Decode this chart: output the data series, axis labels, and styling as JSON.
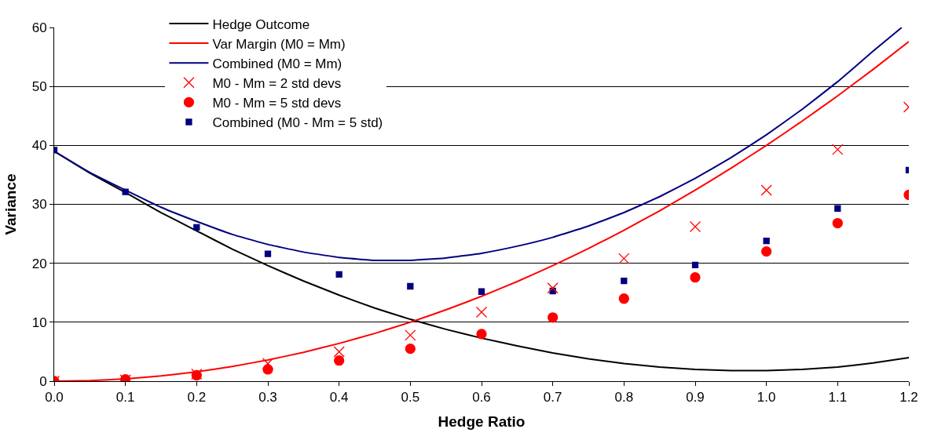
{
  "chart_data": {
    "type": "line",
    "xlabel": "Hedge Ratio",
    "ylabel": "Variance",
    "xlim": [
      0,
      1.2
    ],
    "ylim": [
      0,
      60
    ],
    "xticks": [
      {
        "value": 0,
        "label": "0.0"
      },
      {
        "value": 0.1,
        "label": "0.1"
      },
      {
        "value": 0.2,
        "label": "0.2"
      },
      {
        "value": 0.3,
        "label": "0.3"
      },
      {
        "value": 0.4,
        "label": "0.4"
      },
      {
        "value": 0.5,
        "label": "0.5"
      },
      {
        "value": 0.6,
        "label": "0.6"
      },
      {
        "value": 0.7,
        "label": "0.7"
      },
      {
        "value": 0.8,
        "label": "0.8"
      },
      {
        "value": 0.9,
        "label": "0.9"
      },
      {
        "value": 1.0,
        "label": "1.0"
      },
      {
        "value": 1.1,
        "label": "1.1"
      },
      {
        "value": 1.2,
        "label": "1.2"
      }
    ],
    "yticks": [
      0,
      10,
      20,
      30,
      40,
      50,
      60
    ],
    "grid": "y",
    "legend": "top left",
    "series": [
      {
        "name": "Hedge Outcome",
        "color": "#000000",
        "marker": "none",
        "x": [
          0,
          0.05,
          0.1,
          0.15,
          0.2,
          0.25,
          0.3,
          0.35,
          0.4,
          0.45,
          0.5,
          0.55,
          0.6,
          0.65,
          0.7,
          0.75,
          0.8,
          0.85,
          0.9,
          0.95,
          1.0,
          1.05,
          1.1,
          1.15,
          1.2
        ],
        "values": [
          39,
          35.3,
          32,
          28.6,
          25.5,
          22.4,
          19.6,
          17,
          14.6,
          12.4,
          10.5,
          8.8,
          7.3,
          6,
          4.8,
          3.8,
          3,
          2.4,
          2,
          1.8,
          1.8,
          2,
          2.4,
          3.1,
          4
        ]
      },
      {
        "name": "Var Margin (M0 = Mm)",
        "color": "#ff0000",
        "marker": "none",
        "x": [
          0,
          0.05,
          0.1,
          0.15,
          0.2,
          0.25,
          0.3,
          0.35,
          0.4,
          0.45,
          0.5,
          0.55,
          0.6,
          0.65,
          0.7,
          0.75,
          0.8,
          0.85,
          0.9,
          0.95,
          1.0,
          1.05,
          1.1,
          1.15,
          1.2
        ],
        "values": [
          0,
          0.1,
          0.4,
          0.9,
          1.6,
          2.5,
          3.6,
          4.9,
          6.4,
          8.1,
          10,
          12.1,
          14.4,
          16.9,
          19.6,
          22.5,
          25.6,
          28.9,
          32.4,
          36.1,
          40,
          44.1,
          48.4,
          52.9,
          57.6
        ]
      },
      {
        "name": "Combined (M0 = Mm)",
        "color": "#000080",
        "marker": "none",
        "x": [
          0,
          0.05,
          0.1,
          0.15,
          0.2,
          0.25,
          0.3,
          0.35,
          0.4,
          0.45,
          0.5,
          0.55,
          0.6,
          0.65,
          0.7,
          0.75,
          0.8,
          0.85,
          0.9,
          0.95,
          1.0,
          1.05,
          1.1,
          1.15,
          1.19
        ],
        "values": [
          39,
          35.4,
          32.4,
          29.5,
          27.1,
          24.9,
          23.2,
          21.9,
          21,
          20.5,
          20.5,
          20.9,
          21.7,
          22.9,
          24.4,
          26.3,
          28.6,
          31.3,
          34.4,
          37.9,
          41.8,
          46.1,
          50.8,
          56,
          60
        ]
      },
      {
        "name": "M0 - Mm = 2 std devs",
        "type": "scatter",
        "color": "#ff0000",
        "marker": "cross",
        "x": [
          0,
          0.1,
          0.2,
          0.3,
          0.4,
          0.5,
          0.6,
          0.7,
          0.8,
          0.9,
          1.0,
          1.1,
          1.2
        ],
        "values": [
          0,
          0.2,
          1.2,
          3,
          5,
          7.8,
          11.7,
          15.8,
          20.8,
          26.2,
          32.4,
          39.3,
          46.5
        ]
      },
      {
        "name": "M0 - Mm = 5 std devs",
        "type": "scatter",
        "color": "#ff0000",
        "marker": "circle",
        "x": [
          0,
          0.1,
          0.2,
          0.3,
          0.4,
          0.5,
          0.6,
          0.7,
          0.8,
          0.9,
          1.0,
          1.1,
          1.2
        ],
        "values": [
          0,
          0.3,
          1,
          2,
          3.5,
          5.5,
          8,
          10.8,
          14,
          17.6,
          22,
          26.8,
          31.6
        ]
      },
      {
        "name": "Combined (M0 - Mm = 5 std)",
        "type": "scatter",
        "color": "#000080",
        "marker": "square",
        "x": [
          0,
          0.1,
          0.2,
          0.3,
          0.4,
          0.5,
          0.6,
          0.7,
          0.8,
          0.9,
          1.0,
          1.1,
          1.2
        ],
        "values": [
          39.2,
          32.1,
          26.1,
          21.6,
          18.1,
          16.1,
          15.2,
          15.3,
          17,
          19.7,
          23.8,
          29.3,
          35.8
        ]
      }
    ]
  }
}
